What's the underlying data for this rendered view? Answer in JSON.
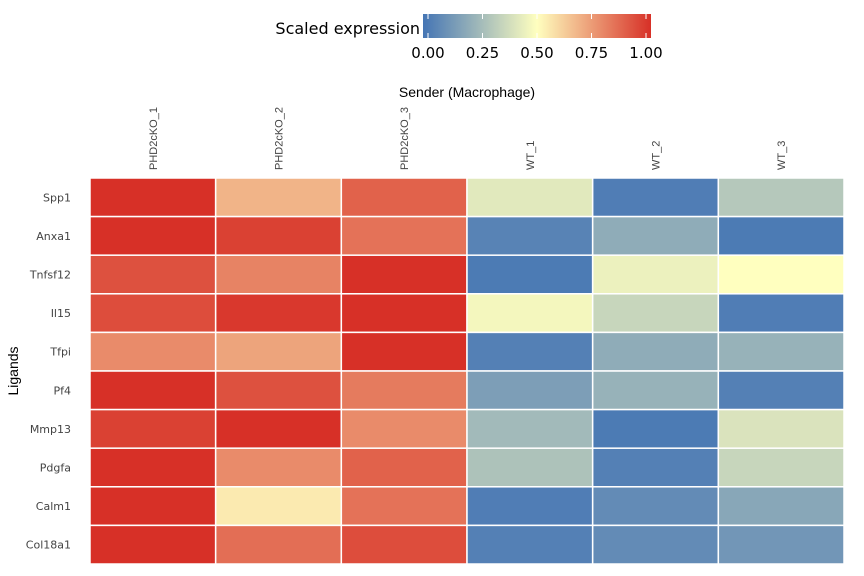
{
  "chart_data": {
    "type": "heatmap",
    "xlabel": "Sender (Macrophage)",
    "ylabel": "Ligands",
    "legend": {
      "title": "Scaled expression",
      "position": "top",
      "ticks": [
        "0.00",
        "0.25",
        "0.50",
        "0.75",
        "1.00"
      ],
      "range": [
        0,
        1
      ],
      "colors": [
        "#4575b4",
        "#ffffbf",
        "#d73027"
      ]
    },
    "columns": [
      "PHD2cKO_1",
      "PHD2cKO_2",
      "PHD2cKO_3",
      "WT_1",
      "WT_2",
      "WT_3"
    ],
    "rows": [
      "Spp1",
      "Anxa1",
      "Tnfsf12",
      "Il15",
      "Tfpi",
      "Pf4",
      "Mmp13",
      "Pdgfa",
      "Calm1",
      "Col18a1"
    ],
    "values": [
      [
        1.0,
        0.68,
        0.88,
        0.42,
        0.03,
        0.3
      ],
      [
        1.0,
        0.96,
        0.84,
        0.05,
        0.2,
        0.02
      ],
      [
        0.92,
        0.8,
        1.0,
        0.02,
        0.45,
        0.5
      ],
      [
        0.93,
        0.98,
        1.0,
        0.47,
        0.35,
        0.03
      ],
      [
        0.78,
        0.72,
        1.0,
        0.04,
        0.2,
        0.22
      ],
      [
        1.0,
        0.92,
        0.82,
        0.15,
        0.22,
        0.04
      ],
      [
        0.96,
        1.0,
        0.78,
        0.25,
        0.02,
        0.4
      ],
      [
        1.0,
        0.78,
        0.88,
        0.28,
        0.04,
        0.35
      ],
      [
        1.0,
        0.55,
        0.84,
        0.03,
        0.08,
        0.18
      ],
      [
        1.0,
        0.85,
        0.93,
        0.04,
        0.08,
        0.12
      ]
    ],
    "grid": false
  }
}
